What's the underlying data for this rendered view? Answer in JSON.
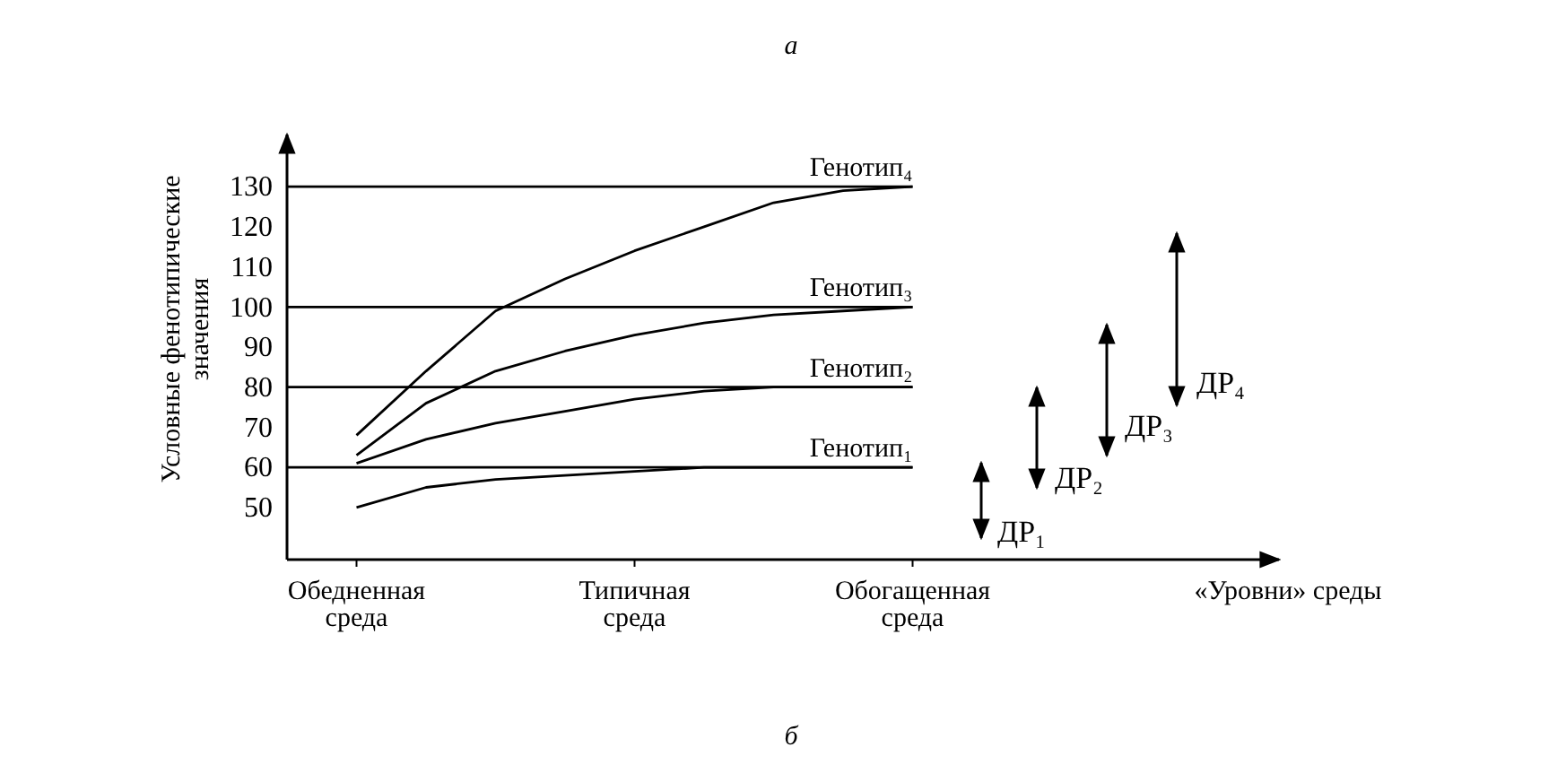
{
  "chart_data": {
    "type": "line",
    "title": "а",
    "ylabel": "Условные фенотипические значения",
    "categories": [
      null,
      "Обедненная среда",
      null,
      null,
      null,
      "Типичная среда",
      null,
      null,
      null,
      "Обогащенная среда"
    ],
    "ylim": [
      37,
      143
    ],
    "yticks": [
      50,
      60,
      70,
      80,
      90,
      100,
      110,
      120,
      130
    ],
    "series": [
      {
        "name": "Генотип₄",
        "color": "#000000",
        "values": [
          130,
          130,
          130,
          130,
          130,
          130,
          130,
          130,
          130,
          130
        ]
      },
      {
        "name": "Генотип₃",
        "color": "#000000",
        "values": [
          100,
          100,
          100,
          100,
          100,
          100,
          100,
          100,
          100,
          100
        ]
      },
      {
        "name": "Генотип₂",
        "color": "#000000",
        "values": [
          80,
          80,
          80,
          80,
          80,
          80,
          80,
          80,
          80,
          80
        ]
      },
      {
        "name": "Генотип₁",
        "color": "#000000",
        "values": [
          60,
          60,
          60,
          60,
          60,
          60,
          60,
          60,
          60,
          60
        ]
      },
      {
        "color": "#000000",
        "values": [
          null,
          68,
          84,
          99,
          107,
          114,
          120,
          126,
          129,
          130
        ]
      },
      {
        "color": "#000000",
        "values": [
          null,
          63,
          76,
          84,
          89,
          93,
          96,
          98,
          99,
          100
        ]
      },
      {
        "color": "#000000",
        "values": [
          null,
          61,
          67,
          71,
          74,
          77,
          79,
          80,
          80,
          80
        ]
      },
      {
        "color": "#000000",
        "values": [
          null,
          50,
          55,
          57,
          58,
          59,
          60,
          60,
          60,
          60
        ]
      }
    ],
    "annotations": [
      "ДР₁",
      "ДР₂",
      "ДР₃",
      "ДР₄",
      "«Уровни» среды",
      "б"
    ],
    "grid": false,
    "marker": "none",
    "line_style": "solid"
  }
}
